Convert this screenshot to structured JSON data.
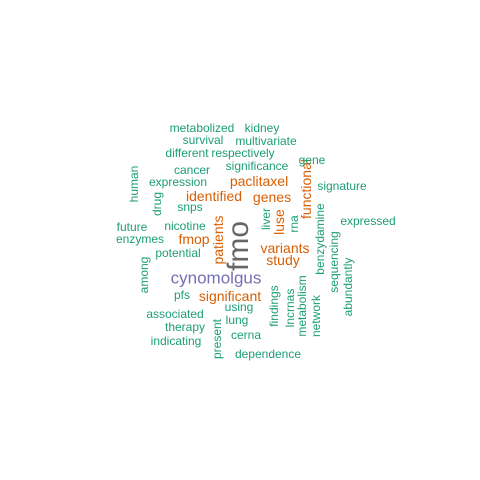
{
  "palette": {
    "green": "#1b9e77",
    "orange": "#d95f02",
    "purple": "#7570b3",
    "gray": "#666666"
  },
  "words": [
    {
      "text": "fmo",
      "tier": 1,
      "color": "#666666",
      "vertical": true
    },
    {
      "text": "cynomolgus",
      "tier": 2,
      "color": "#7570b3",
      "vertical": false
    },
    {
      "text": "patients",
      "tier": 3,
      "color": "#d95f02",
      "vertical": true
    },
    {
      "text": "paclitaxel",
      "tier": 3,
      "color": "#d95f02",
      "vertical": false
    },
    {
      "text": "identified",
      "tier": 3,
      "color": "#d95f02",
      "vertical": false
    },
    {
      "text": "genes",
      "tier": 3,
      "color": "#d95f02",
      "vertical": false
    },
    {
      "text": "variants",
      "tier": 3,
      "color": "#d95f02",
      "vertical": false
    },
    {
      "text": "study",
      "tier": 3,
      "color": "#d95f02",
      "vertical": false
    },
    {
      "text": "luse",
      "tier": 3,
      "color": "#d95f02",
      "vertical": true
    },
    {
      "text": "functional",
      "tier": 3,
      "color": "#d95f02",
      "vertical": true
    },
    {
      "text": "fmop",
      "tier": 3,
      "color": "#d95f02",
      "vertical": false
    },
    {
      "text": "significant",
      "tier": 3,
      "color": "#d95f02",
      "vertical": false
    },
    {
      "text": "metabolized",
      "tier": 4,
      "color": "#1b9e77",
      "vertical": false
    },
    {
      "text": "kidney",
      "tier": 4,
      "color": "#1b9e77",
      "vertical": false
    },
    {
      "text": "survival",
      "tier": 4,
      "color": "#1b9e77",
      "vertical": false
    },
    {
      "text": "multivariate",
      "tier": 4,
      "color": "#1b9e77",
      "vertical": false
    },
    {
      "text": "different",
      "tier": 4,
      "color": "#1b9e77",
      "vertical": false
    },
    {
      "text": "respectively",
      "tier": 4,
      "color": "#1b9e77",
      "vertical": false
    },
    {
      "text": "gene",
      "tier": 4,
      "color": "#1b9e77",
      "vertical": false
    },
    {
      "text": "human",
      "tier": 4,
      "color": "#1b9e77",
      "vertical": true
    },
    {
      "text": "cancer",
      "tier": 4,
      "color": "#1b9e77",
      "vertical": false
    },
    {
      "text": "significance",
      "tier": 4,
      "color": "#1b9e77",
      "vertical": false
    },
    {
      "text": "expression",
      "tier": 4,
      "color": "#1b9e77",
      "vertical": false
    },
    {
      "text": "signature",
      "tier": 4,
      "color": "#1b9e77",
      "vertical": false
    },
    {
      "text": "drug",
      "tier": 4,
      "color": "#1b9e77",
      "vertical": true
    },
    {
      "text": "snps",
      "tier": 4,
      "color": "#1b9e77",
      "vertical": false
    },
    {
      "text": "liver",
      "tier": 4,
      "color": "#1b9e77",
      "vertical": true
    },
    {
      "text": "rna",
      "tier": 4,
      "color": "#1b9e77",
      "vertical": true
    },
    {
      "text": "benzydamine",
      "tier": 4,
      "color": "#1b9e77",
      "vertical": true
    },
    {
      "text": "expressed",
      "tier": 4,
      "color": "#1b9e77",
      "vertical": false
    },
    {
      "text": "future",
      "tier": 4,
      "color": "#1b9e77",
      "vertical": false
    },
    {
      "text": "nicotine",
      "tier": 4,
      "color": "#1b9e77",
      "vertical": false
    },
    {
      "text": "enzymes",
      "tier": 4,
      "color": "#1b9e77",
      "vertical": false
    },
    {
      "text": "sequencing",
      "tier": 4,
      "color": "#1b9e77",
      "vertical": true
    },
    {
      "text": "potential",
      "tier": 4,
      "color": "#1b9e77",
      "vertical": false
    },
    {
      "text": "abundantly",
      "tier": 4,
      "color": "#1b9e77",
      "vertical": true
    },
    {
      "text": "among",
      "tier": 4,
      "color": "#1b9e77",
      "vertical": true
    },
    {
      "text": "pfs",
      "tier": 4,
      "color": "#1b9e77",
      "vertical": false
    },
    {
      "text": "metabolism",
      "tier": 4,
      "color": "#1b9e77",
      "vertical": true
    },
    {
      "text": "lncrnas",
      "tier": 4,
      "color": "#1b9e77",
      "vertical": true
    },
    {
      "text": "findings",
      "tier": 4,
      "color": "#1b9e77",
      "vertical": true
    },
    {
      "text": "network",
      "tier": 4,
      "color": "#1b9e77",
      "vertical": true
    },
    {
      "text": "associated",
      "tier": 4,
      "color": "#1b9e77",
      "vertical": false
    },
    {
      "text": "using",
      "tier": 4,
      "color": "#1b9e77",
      "vertical": false
    },
    {
      "text": "therapy",
      "tier": 4,
      "color": "#1b9e77",
      "vertical": false
    },
    {
      "text": "lung",
      "tier": 4,
      "color": "#1b9e77",
      "vertical": false
    },
    {
      "text": "indicating",
      "tier": 4,
      "color": "#1b9e77",
      "vertical": false
    },
    {
      "text": "cerna",
      "tier": 4,
      "color": "#1b9e77",
      "vertical": false
    },
    {
      "text": "present",
      "tier": 4,
      "color": "#1b9e77",
      "vertical": true
    },
    {
      "text": "dependence",
      "tier": 4,
      "color": "#1b9e77",
      "vertical": false
    }
  ]
}
